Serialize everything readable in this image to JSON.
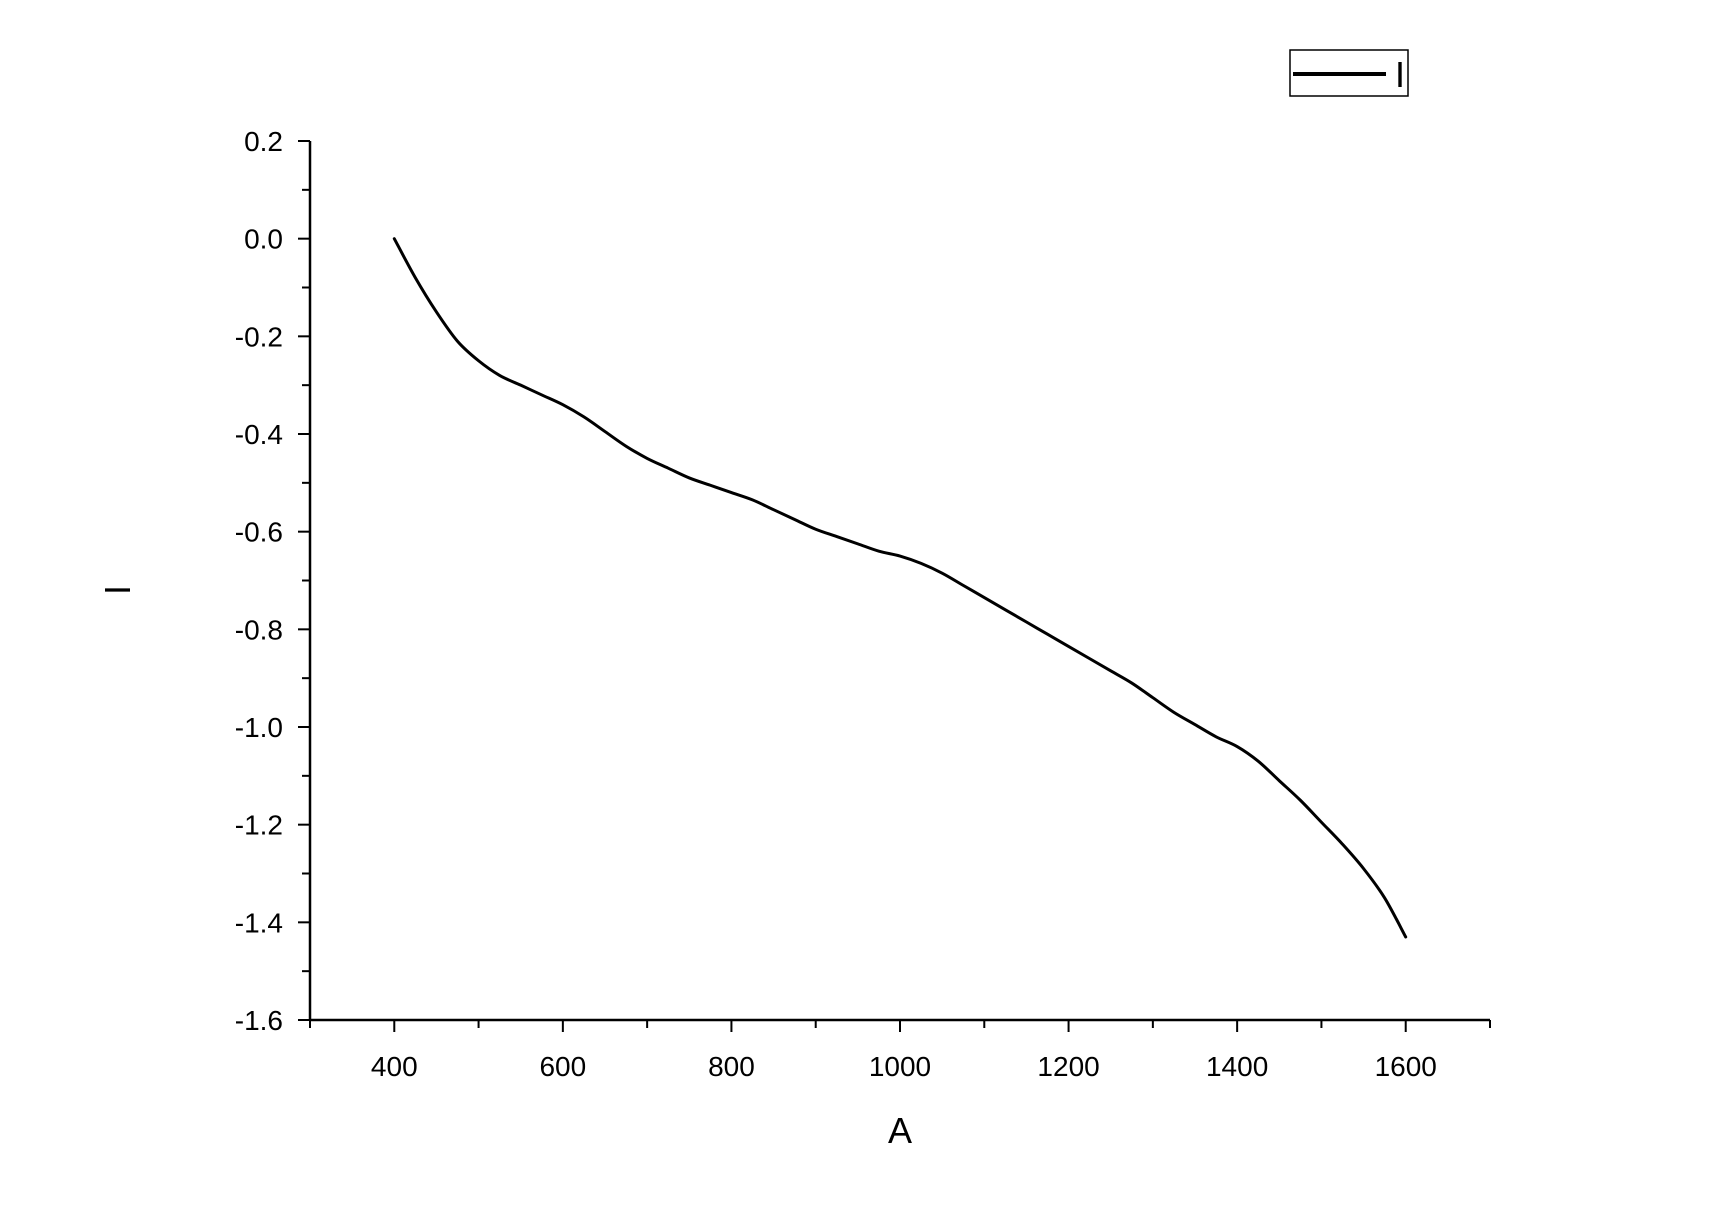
{
  "chart_data": {
    "type": "line",
    "xlabel": "A",
    "ylabel": "I",
    "xlim": [
      300,
      1700
    ],
    "ylim": [
      -1.6,
      0.2
    ],
    "x_ticks": [
      400,
      600,
      800,
      1000,
      1200,
      1400,
      1600
    ],
    "x_tick_labels": [
      "400",
      "600",
      "800",
      "1000",
      "1200",
      "1400",
      "1600"
    ],
    "y_ticks": [
      0.2,
      0.0,
      -0.2,
      -0.4,
      -0.6,
      -0.8,
      -1.0,
      -1.2,
      -1.4,
      -1.6
    ],
    "y_tick_labels": [
      "0.2",
      "0.0",
      "-0.2",
      "-0.4",
      "-0.6",
      "-0.8",
      "-1.0",
      "-1.2",
      "-1.4",
      "-1.6"
    ],
    "grid": false,
    "legend_position": "top-right",
    "series": [
      {
        "name": "I",
        "color": "#000000",
        "x": [
          400,
          425,
          450,
          475,
          500,
          525,
          550,
          575,
          600,
          625,
          650,
          675,
          700,
          725,
          750,
          775,
          800,
          825,
          850,
          875,
          900,
          925,
          950,
          975,
          1000,
          1025,
          1050,
          1075,
          1100,
          1125,
          1150,
          1175,
          1200,
          1225,
          1250,
          1275,
          1300,
          1325,
          1350,
          1375,
          1400,
          1425,
          1450,
          1475,
          1500,
          1525,
          1550,
          1575,
          1600
        ],
        "y": [
          0.0,
          -0.08,
          -0.15,
          -0.21,
          -0.25,
          -0.28,
          -0.3,
          -0.32,
          -0.34,
          -0.365,
          -0.395,
          -0.425,
          -0.45,
          -0.47,
          -0.49,
          -0.505,
          -0.52,
          -0.535,
          -0.555,
          -0.575,
          -0.595,
          -0.61,
          -0.625,
          -0.64,
          -0.65,
          -0.665,
          -0.685,
          -0.71,
          -0.735,
          -0.76,
          -0.785,
          -0.81,
          -0.835,
          -0.86,
          -0.885,
          -0.91,
          -0.94,
          -0.97,
          -0.995,
          -1.02,
          -1.04,
          -1.07,
          -1.11,
          -1.15,
          -1.195,
          -1.24,
          -1.29,
          -1.35,
          -1.43
        ]
      }
    ]
  }
}
